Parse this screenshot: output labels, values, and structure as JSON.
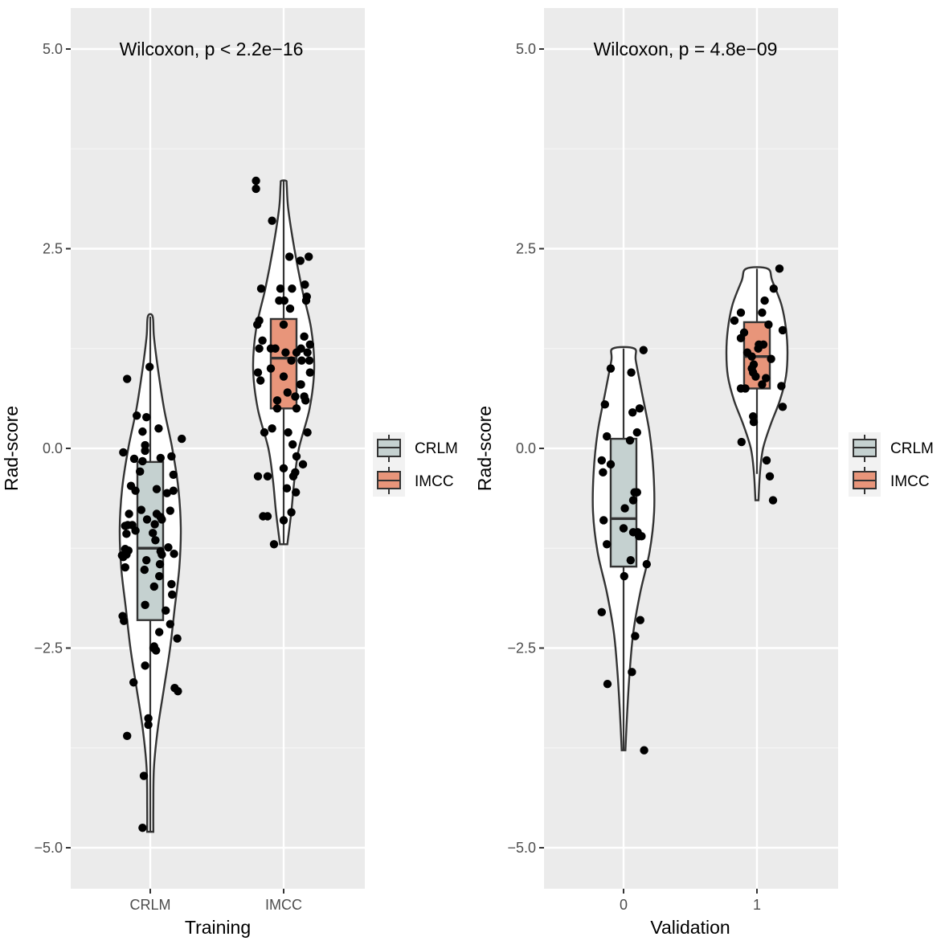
{
  "chart_data": [
    {
      "type": "violin-box-jitter",
      "panel": "Training",
      "xlabel": "Training",
      "ylabel": "Rad-score",
      "annotation": "Wilcoxon, p < 2.2e−16",
      "categories": [
        "CRLM",
        "IMCC"
      ],
      "ylim": [
        -5.5,
        5.5
      ],
      "yticks": [
        5.0,
        2.5,
        0.0,
        -2.5,
        -5.0
      ],
      "ytick_labels": [
        "5.0",
        "2.5",
        "0.0",
        "−2.5",
        "−5.0"
      ],
      "grid": true,
      "legend": {
        "position": "right",
        "title": "",
        "entries": [
          "CRLM",
          "IMCC"
        ],
        "colors": [
          "#c5d1d0",
          "#e8957a"
        ]
      },
      "groups": [
        {
          "name": "CRLM",
          "fill": "#c5d1d0",
          "box": {
            "q1": -2.15,
            "median": -1.25,
            "q3": -0.17,
            "whisker_low": -4.8,
            "whisker_high": 1.65
          },
          "violin": [
            [
              -4.8,
              0.1
            ],
            [
              -4.5,
              0.1
            ],
            [
              -4.0,
              0.12
            ],
            [
              -3.5,
              0.25
            ],
            [
              -3.0,
              0.45
            ],
            [
              -2.5,
              0.65
            ],
            [
              -2.0,
              0.8
            ],
            [
              -1.5,
              0.95
            ],
            [
              -1.0,
              1.0
            ],
            [
              -0.5,
              0.92
            ],
            [
              0.0,
              0.72
            ],
            [
              0.5,
              0.45
            ],
            [
              1.0,
              0.25
            ],
            [
              1.4,
              0.12
            ],
            [
              1.65,
              0.08
            ]
          ],
          "points": [
            [
              -0.36,
              0.87
            ],
            [
              -0.16,
              -0.29
            ],
            [
              -0.12,
              -0.16
            ],
            [
              0.16,
              -0.86
            ],
            [
              -0.21,
              0.41
            ],
            [
              0.07,
              -0.95
            ],
            [
              -0.01,
              1.02
            ],
            [
              -0.42,
              -0.05
            ],
            [
              0.13,
              0.25
            ],
            [
              -0.12,
              0.21
            ],
            [
              -0.08,
              -0.03
            ],
            [
              -0.06,
              0.39
            ],
            [
              -0.25,
              -0.13
            ],
            [
              -0.39,
              -1.26
            ],
            [
              0.16,
              -0.12
            ],
            [
              0.33,
              -0.1
            ],
            [
              -0.08,
              0.04
            ],
            [
              0.16,
              -1.29
            ],
            [
              0.36,
              -0.53
            ],
            [
              -0.23,
              -1.03
            ],
            [
              0.34,
              -1.83
            ],
            [
              0.18,
              -1.33
            ],
            [
              0.15,
              -1.45
            ],
            [
              0.28,
              -1.24
            ],
            [
              -0.05,
              -0.89
            ],
            [
              -0.37,
              -1.07
            ],
            [
              0.14,
              -2.3
            ],
            [
              0.05,
              -2.5
            ],
            [
              0.31,
              -0.78
            ],
            [
              0.43,
              -3.04
            ],
            [
              0.49,
              0.12
            ],
            [
              0.06,
              -2.48
            ],
            [
              -0.23,
              -0.53
            ],
            [
              -0.37,
              -1.33
            ],
            [
              -0.34,
              -1.28
            ],
            [
              -0.42,
              -1.36
            ],
            [
              0.38,
              -3.0
            ],
            [
              -0.26,
              -2.93
            ],
            [
              -0.08,
              -2.72
            ],
            [
              -0.43,
              -2.1
            ],
            [
              0.26,
              -0.56
            ],
            [
              0.04,
              -1.06
            ],
            [
              0.24,
              -2.03
            ],
            [
              0.42,
              -2.38
            ],
            [
              0.06,
              -1.73
            ],
            [
              0.09,
              -2.53
            ],
            [
              -0.39,
              -0.97
            ],
            [
              -0.44,
              -1.34
            ],
            [
              -0.06,
              -1.4
            ],
            [
              0.1,
              -0.51
            ],
            [
              -0.33,
              -0.82
            ],
            [
              -0.14,
              -0.77
            ],
            [
              0.36,
              -0.33
            ],
            [
              -0.39,
              -1.49
            ],
            [
              0.37,
              -1.32
            ],
            [
              -0.08,
              -1.96
            ],
            [
              -0.28,
              -0.96
            ],
            [
              0.08,
              -1.15
            ],
            [
              -0.09,
              -1.52
            ],
            [
              0.31,
              -2.2
            ],
            [
              0.14,
              -1.6
            ],
            [
              -0.35,
              -0.96
            ],
            [
              0.18,
              -0.89
            ],
            [
              -0.03,
              -3.38
            ],
            [
              -0.1,
              -4.1
            ],
            [
              -0.12,
              -4.75
            ],
            [
              0.33,
              -1.7
            ],
            [
              -0.36,
              -3.6
            ],
            [
              -0.3,
              -0.47
            ],
            [
              0.1,
              -0.82
            ],
            [
              -0.03,
              -3.46
            ],
            [
              -0.41,
              -2.16
            ]
          ]
        },
        {
          "name": "IMCC",
          "fill": "#e8957a",
          "box": {
            "q1": 0.5,
            "median": 1.13,
            "q3": 1.62,
            "whisker_low": -1.2,
            "whisker_high": 3.35
          },
          "violin": [
            [
              -1.2,
              0.12
            ],
            [
              -0.8,
              0.25
            ],
            [
              -0.4,
              0.35
            ],
            [
              0.0,
              0.5
            ],
            [
              0.5,
              0.85
            ],
            [
              1.0,
              1.0
            ],
            [
              1.5,
              0.9
            ],
            [
              2.0,
              0.6
            ],
            [
              2.5,
              0.35
            ],
            [
              3.0,
              0.15
            ],
            [
              3.3,
              0.1
            ],
            [
              3.35,
              0.08
            ]
          ],
          "points": [
            [
              -0.43,
              3.35
            ],
            [
              -0.43,
              3.25
            ],
            [
              -0.18,
              2.85
            ],
            [
              0.09,
              2.4
            ],
            [
              0.39,
              2.4
            ],
            [
              0.13,
              2.0
            ],
            [
              0.26,
              2.35
            ],
            [
              0.33,
              2.05
            ],
            [
              0.35,
              1.85
            ],
            [
              -0.41,
              1.55
            ],
            [
              -0.33,
              1.35
            ],
            [
              -0.2,
              1.25
            ],
            [
              0.0,
              1.55
            ],
            [
              -0.38,
              1.25
            ],
            [
              -0.36,
              0.85
            ],
            [
              -0.18,
              0.25
            ],
            [
              -0.1,
              0.5
            ],
            [
              0.18,
              0.65
            ],
            [
              0.26,
              0.8
            ],
            [
              0.34,
              0.6
            ],
            [
              0.37,
              1.2
            ],
            [
              0.28,
              1.1
            ],
            [
              0.32,
              1.4
            ],
            [
              0.36,
              1.9
            ],
            [
              -0.3,
              0.2
            ],
            [
              -0.4,
              0.95
            ],
            [
              -0.38,
              1.6
            ],
            [
              -0.35,
              2.0
            ],
            [
              0.1,
              1.75
            ],
            [
              0.27,
              1.25
            ],
            [
              0.2,
              0.5
            ],
            [
              0.14,
              0.05
            ],
            [
              -0.07,
              1.85
            ],
            [
              -0.05,
              2.0
            ],
            [
              0.07,
              0.2
            ],
            [
              -0.13,
              1.25
            ],
            [
              0.0,
              0.9
            ],
            [
              0.01,
              1.85
            ],
            [
              0.12,
              1.1
            ],
            [
              0.03,
              1.2
            ],
            [
              0.2,
              1.2
            ],
            [
              0.27,
              0.8
            ],
            [
              0.32,
              0.65
            ],
            [
              0.41,
              0.95
            ],
            [
              0.4,
              1.1
            ],
            [
              0.41,
              1.3
            ],
            [
              0.37,
              0.2
            ],
            [
              0.3,
              -0.2
            ],
            [
              0.2,
              -0.1
            ],
            [
              0.15,
              -0.35
            ],
            [
              -0.4,
              -0.35
            ],
            [
              -0.32,
              -0.85
            ],
            [
              -0.25,
              -0.35
            ],
            [
              0.18,
              -0.3
            ],
            [
              0.12,
              -0.8
            ],
            [
              0.19,
              -0.55
            ],
            [
              -0.25,
              -0.85
            ],
            [
              -0.15,
              -1.2
            ],
            [
              0.0,
              -0.25
            ],
            [
              -0.1,
              0.6
            ],
            [
              0.05,
              -0.5
            ],
            [
              -0.2,
              1.0
            ],
            [
              0.06,
              0.7
            ],
            [
              0.0,
              -0.9
            ]
          ]
        }
      ]
    },
    {
      "type": "violin-box-jitter",
      "panel": "Validation",
      "xlabel": "Validation",
      "ylabel": "Rad-score",
      "annotation": "Wilcoxon, p = 4.8e−09",
      "categories": [
        "0",
        "1"
      ],
      "ylim": [
        -5.5,
        5.5
      ],
      "yticks": [
        5.0,
        2.5,
        0.0,
        -2.5,
        -5.0
      ],
      "ytick_labels": [
        "5.0",
        "2.5",
        "0.0",
        "−2.5",
        "−5.0"
      ],
      "grid": true,
      "legend": {
        "position": "right",
        "title": "",
        "entries": [
          "CRLM",
          "IMCC"
        ],
        "colors": [
          "#c5d1d0",
          "#e8957a"
        ]
      },
      "groups": [
        {
          "name": "0",
          "fill": "#c5d1d0",
          "box": {
            "q1": -1.48,
            "median": -0.88,
            "q3": 0.12,
            "whisker_low": -3.78,
            "whisker_high": 1.25
          },
          "violin": [
            [
              -3.78,
              0.06
            ],
            [
              -3.3,
              0.12
            ],
            [
              -2.8,
              0.2
            ],
            [
              -2.3,
              0.32
            ],
            [
              -1.8,
              0.55
            ],
            [
              -1.3,
              0.85
            ],
            [
              -0.8,
              1.0
            ],
            [
              -0.3,
              0.98
            ],
            [
              0.2,
              0.85
            ],
            [
              0.7,
              0.6
            ],
            [
              1.1,
              0.4
            ],
            [
              1.25,
              0.35
            ]
          ],
          "points": [
            [
              0.31,
              1.23
            ],
            [
              -0.2,
              1.0
            ],
            [
              -0.29,
              0.55
            ],
            [
              -0.26,
              0.15
            ],
            [
              -0.2,
              -0.2
            ],
            [
              -0.34,
              -0.15
            ],
            [
              -0.32,
              -0.3
            ],
            [
              -0.31,
              -0.9
            ],
            [
              -0.26,
              -1.2
            ],
            [
              -0.34,
              -2.05
            ],
            [
              -0.25,
              -2.95
            ],
            [
              0.12,
              0.95
            ],
            [
              0.14,
              0.45
            ],
            [
              0.25,
              0.5
            ],
            [
              0.21,
              0.2
            ],
            [
              0.1,
              0.1
            ],
            [
              0.17,
              -0.55
            ],
            [
              0.21,
              -0.55
            ],
            [
              0.15,
              -0.65
            ],
            [
              0.22,
              -1.05
            ],
            [
              0.24,
              -1.1
            ],
            [
              0.28,
              -1.1
            ],
            [
              0.36,
              -1.45
            ],
            [
              0.11,
              -1.4
            ],
            [
              0.18,
              -2.35
            ],
            [
              0.26,
              -2.15
            ],
            [
              0.13,
              -2.8
            ],
            [
              0.32,
              -3.78
            ],
            [
              0.02,
              -0.75
            ],
            [
              0.0,
              -1.0
            ],
            [
              0.01,
              -1.6
            ],
            [
              0.15,
              -1.05
            ]
          ]
        },
        {
          "name": "1",
          "fill": "#e8957a",
          "box": {
            "q1": 0.75,
            "median": 1.15,
            "q3": 1.58,
            "whisker_low": -0.32,
            "whisker_high": 2.25
          },
          "violin": [
            [
              -0.65,
              0.05
            ],
            [
              -0.3,
              0.1
            ],
            [
              0.0,
              0.2
            ],
            [
              0.3,
              0.45
            ],
            [
              0.6,
              0.75
            ],
            [
              0.9,
              0.95
            ],
            [
              1.2,
              1.0
            ],
            [
              1.5,
              0.95
            ],
            [
              1.8,
              0.8
            ],
            [
              2.1,
              0.5
            ],
            [
              2.25,
              0.35
            ]
          ],
          "points": [
            [
              0.35,
              2.25
            ],
            [
              0.26,
              2.0
            ],
            [
              0.12,
              1.85
            ],
            [
              0.08,
              1.7
            ],
            [
              -0.25,
              1.7
            ],
            [
              -0.35,
              1.6
            ],
            [
              -0.2,
              1.45
            ],
            [
              -0.25,
              1.38
            ],
            [
              -0.15,
              1.2
            ],
            [
              -0.08,
              1.15
            ],
            [
              -0.05,
              1.05
            ],
            [
              -0.06,
              0.95
            ],
            [
              -0.08,
              1.0
            ],
            [
              -0.02,
              0.9
            ],
            [
              -0.25,
              0.75
            ],
            [
              -0.18,
              0.75
            ],
            [
              -0.24,
              0.08
            ],
            [
              0.1,
              1.3
            ],
            [
              0.18,
              1.55
            ],
            [
              0.22,
              1.12
            ],
            [
              0.4,
              1.48
            ],
            [
              0.38,
              0.78
            ],
            [
              0.4,
              0.52
            ],
            [
              0.14,
              0.88
            ],
            [
              0.08,
              0.8
            ],
            [
              -0.05,
              0.33
            ],
            [
              0.15,
              -0.15
            ],
            [
              0.2,
              -0.35
            ],
            [
              0.25,
              -0.65
            ],
            [
              0.02,
              1.25
            ],
            [
              0.03,
              1.3
            ],
            [
              -0.06,
              0.4
            ]
          ]
        }
      ]
    }
  ]
}
